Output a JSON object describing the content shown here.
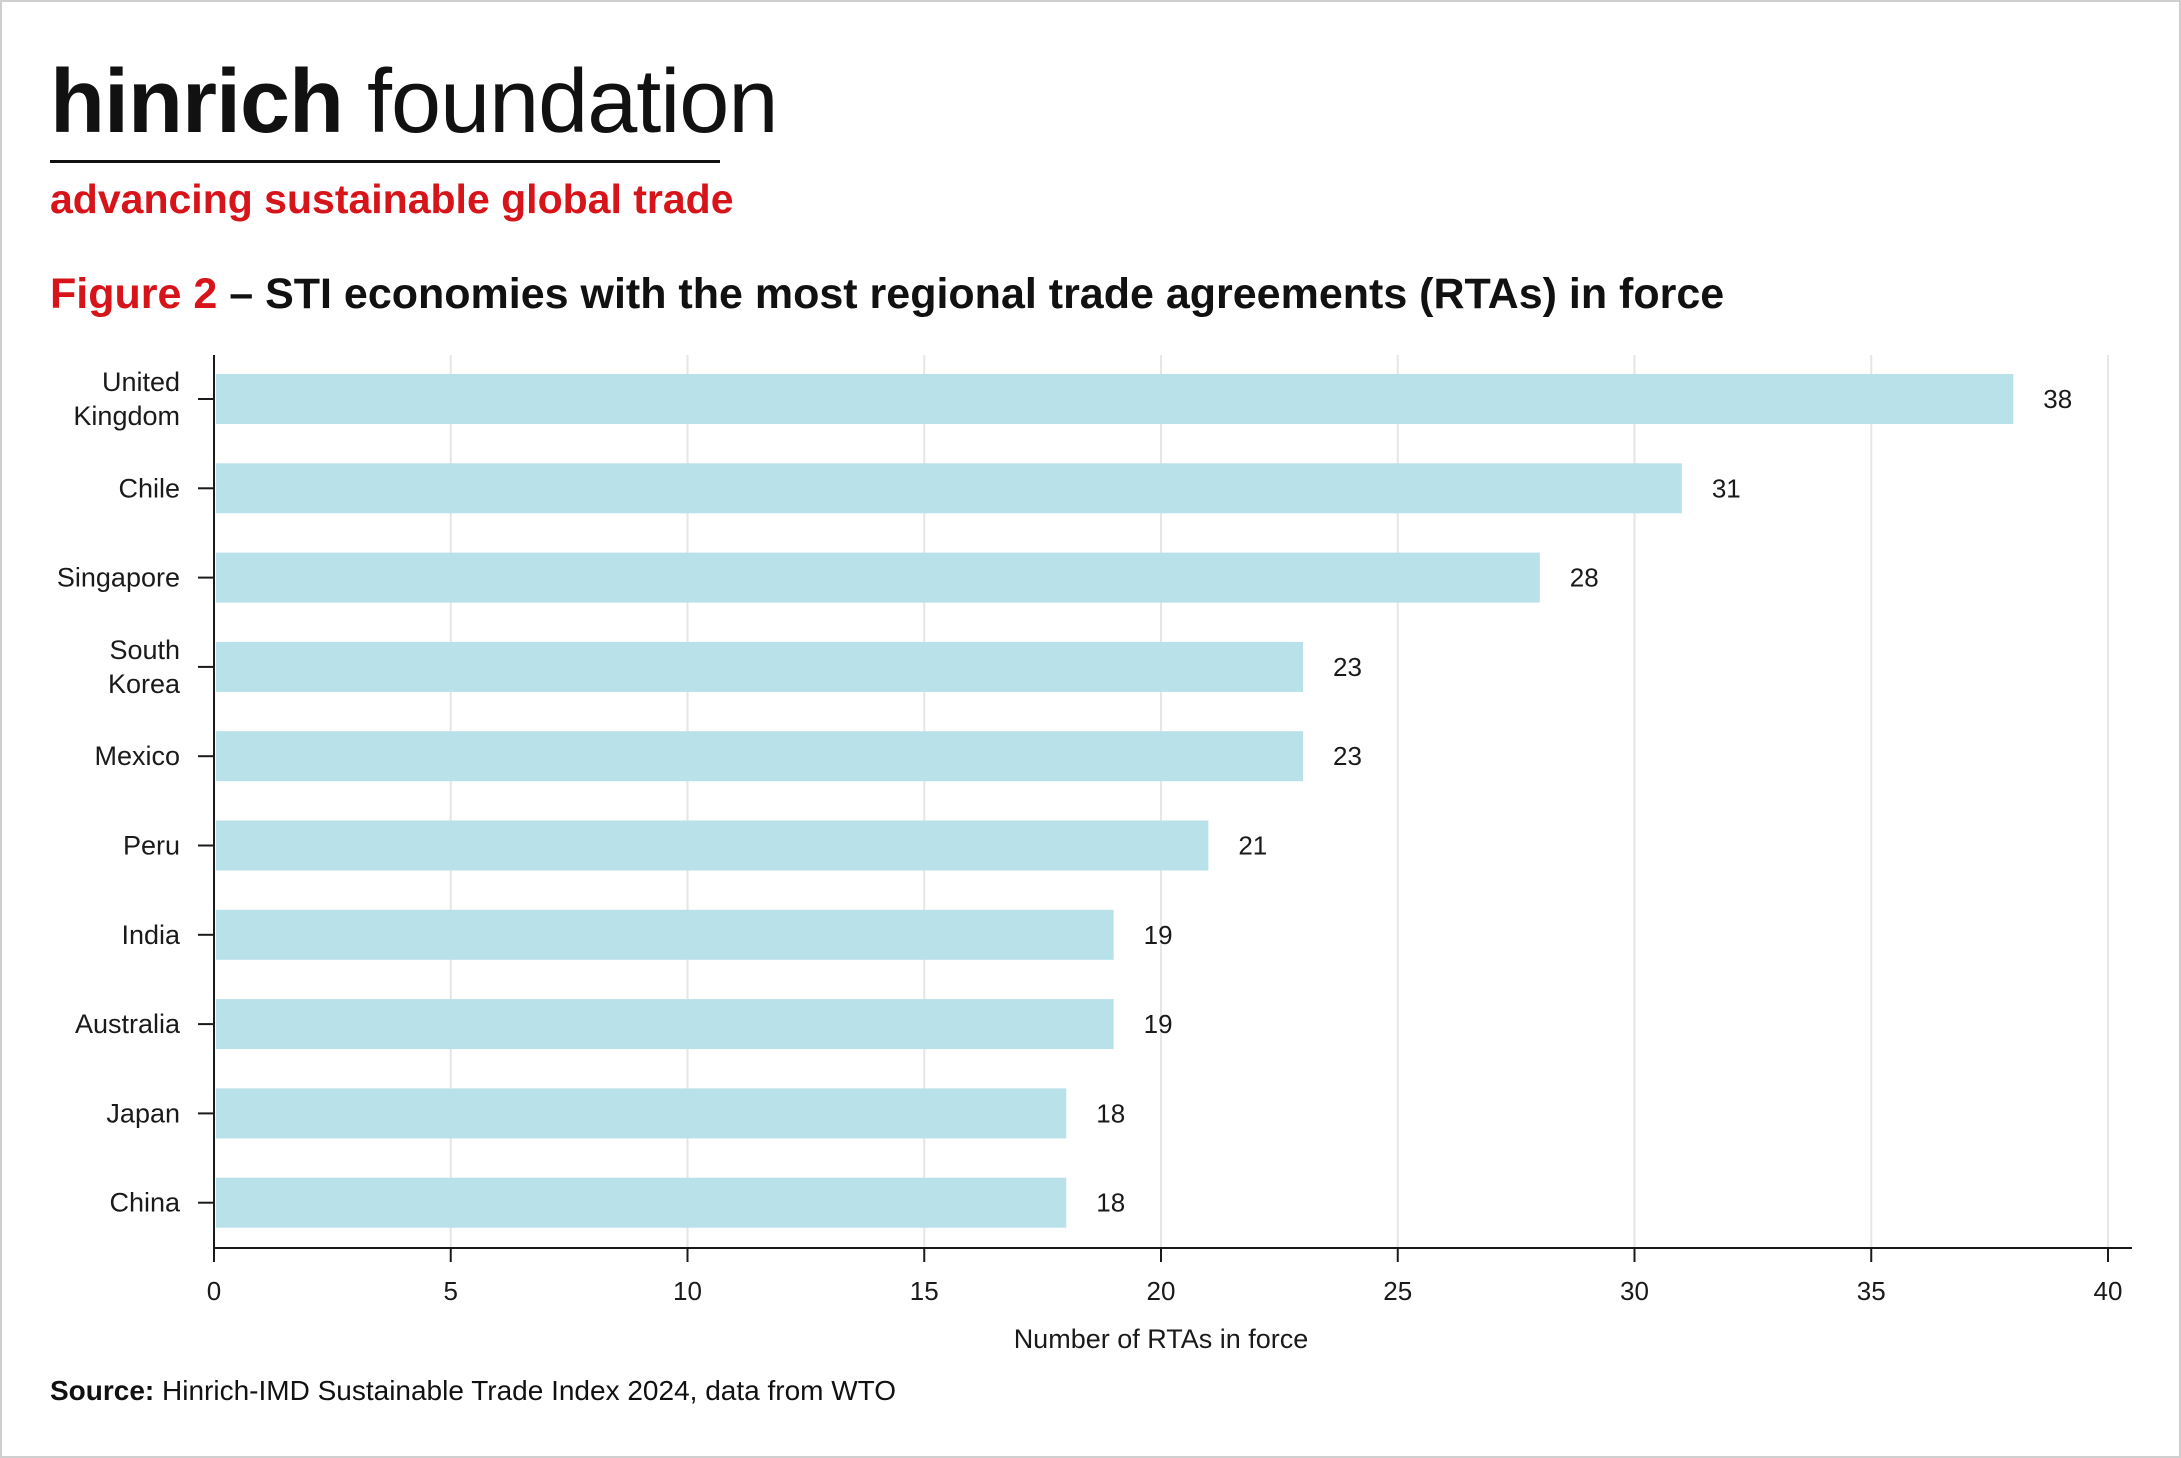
{
  "brand": {
    "name_bold": "hinrich",
    "name_light": " foundation",
    "tagline": "advancing sustainable global trade",
    "accent_color": "#d7141a"
  },
  "figure": {
    "number": "Figure 2",
    "title": " – STI economies with the most regional trade agreements (RTAs) in force"
  },
  "source": {
    "label": "Source:",
    "text": " Hinrich-IMD Sustainable Trade Index 2024, data from WTO"
  },
  "chart_data": {
    "type": "bar",
    "orientation": "horizontal",
    "categories": [
      "United Kingdom",
      "Chile",
      "Singapore",
      "South Korea",
      "Mexico",
      "Peru",
      "India",
      "Australia",
      "Japan",
      "China"
    ],
    "category_lines": [
      [
        "United",
        "Kingdom"
      ],
      [
        "Chile"
      ],
      [
        "Singapore"
      ],
      [
        "South",
        "Korea"
      ],
      [
        "Mexico"
      ],
      [
        "Peru"
      ],
      [
        "India"
      ],
      [
        "Australia"
      ],
      [
        "Japan"
      ],
      [
        "China"
      ]
    ],
    "values": [
      38,
      31,
      28,
      23,
      23,
      21,
      19,
      19,
      18,
      18
    ],
    "xlabel": "Number of RTAs in force",
    "ylabel": "",
    "xlim": [
      0,
      40
    ],
    "xticks": [
      0,
      5,
      10,
      15,
      20,
      25,
      30,
      35,
      40
    ],
    "grid": "vertical",
    "bar_color": "#b9e1ea",
    "data_labels": true
  }
}
